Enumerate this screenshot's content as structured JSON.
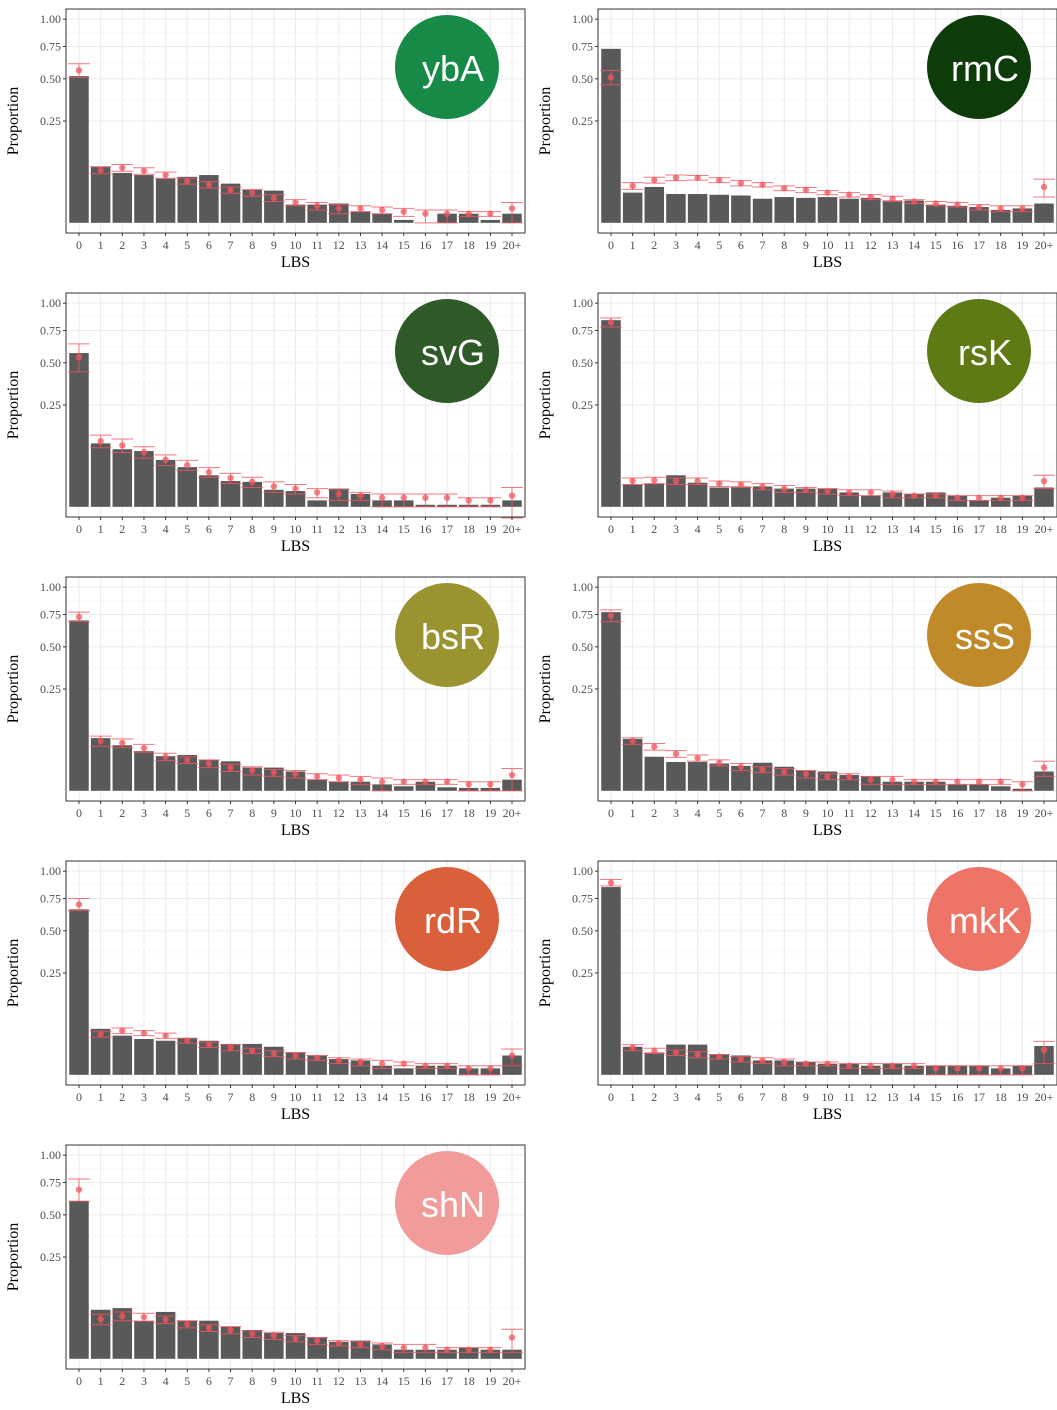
{
  "chart_data": [
    {
      "type": "bar",
      "label": "ybA",
      "badge_color": "#178a47",
      "xlabel": "LBS",
      "ylabel": "Proportion",
      "scale": "sqrt",
      "grid": true,
      "bar_color": "#595959",
      "point_color": "#f2555f",
      "categories": [
        "0",
        "1",
        "2",
        "3",
        "4",
        "5",
        "6",
        "7",
        "8",
        "9",
        "10",
        "11",
        "12",
        "13",
        "14",
        "15",
        "16",
        "17",
        "18",
        "19",
        "20+"
      ],
      "values": [
        0.519,
        0.075,
        0.06,
        0.055,
        0.047,
        0.051,
        0.055,
        0.037,
        0.026,
        0.025,
        0.008,
        0.008,
        0.009,
        0.003,
        0.002,
        0.0002,
        0,
        0.002,
        0.002,
        0.0002,
        0.002
      ],
      "point_values": [
        0.56,
        0.067,
        0.073,
        0.065,
        0.055,
        0.042,
        0.035,
        0.026,
        0.022,
        0.015,
        0.01,
        0.007,
        0.005,
        0.005,
        0.004,
        0.003,
        0.002,
        0.002,
        0.002,
        0.002,
        0.005
      ],
      "point_errors": [
        0.05,
        0.009,
        0.009,
        0.008,
        0.007,
        0.006,
        0.006,
        0.005,
        0.005,
        0.004,
        0.003,
        0.003,
        0.003,
        0.002,
        0.002,
        0.002,
        0.002,
        0.002,
        0.001,
        0.001,
        0.005
      ],
      "ylim": [
        0,
        1
      ],
      "yticks": [
        0.25,
        {
          "value": 0.5,
          "label": "0.50"
        },
        0.75,
        {
          "value": 1,
          "label": "1.00"
        }
      ]
    },
    {
      "type": "bar",
      "label": "rmC",
      "badge_color": "#0d3b0a",
      "xlabel": "LBS",
      "ylabel": "Proportion",
      "scale": "sqrt",
      "grid": true,
      "bar_color": "#595959",
      "point_color": "#f2555f",
      "categories": [
        "0",
        "1",
        "2",
        "3",
        "4",
        "5",
        "6",
        "7",
        "8",
        "9",
        "10",
        "11",
        "12",
        "13",
        "14",
        "15",
        "16",
        "17",
        "18",
        "19",
        "20+"
      ],
      "values": [
        0.73,
        0.022,
        0.031,
        0.02,
        0.02,
        0.019,
        0.018,
        0.014,
        0.016,
        0.015,
        0.016,
        0.014,
        0.015,
        0.012,
        0.012,
        0.008,
        0.007,
        0.006,
        0.004,
        0.005,
        0.009
      ],
      "point_values": [
        0.51,
        0.033,
        0.044,
        0.049,
        0.049,
        0.044,
        0.038,
        0.035,
        0.029,
        0.026,
        0.022,
        0.019,
        0.016,
        0.014,
        0.011,
        0.009,
        0.008,
        0.006,
        0.005,
        0.005,
        0.031
      ],
      "point_errors": [
        0.05,
        0.006,
        0.006,
        0.006,
        0.005,
        0.005,
        0.005,
        0.004,
        0.004,
        0.004,
        0.003,
        0.003,
        0.003,
        0.003,
        0.002,
        0.002,
        0.002,
        0.002,
        0.002,
        0.002,
        0.015
      ],
      "ylim": [
        0,
        1
      ],
      "yticks": [
        0.25,
        {
          "value": 0.5,
          "label": "0.50"
        },
        0.75,
        {
          "value": 1,
          "label": "1.00"
        }
      ]
    },
    {
      "type": "bar",
      "label": "svG",
      "badge_color": "#2d5a27",
      "xlabel": "LBS",
      "ylabel": "Proportion",
      "scale": "sqrt",
      "grid": true,
      "bar_color": "#595959",
      "point_color": "#f2555f",
      "categories": [
        "0",
        "1",
        "2",
        "3",
        "4",
        "5",
        "6",
        "7",
        "8",
        "9",
        "10",
        "11",
        "12",
        "13",
        "14",
        "15",
        "16",
        "17",
        "18",
        "19",
        "20+"
      ],
      "values": [
        0.57,
        0.097,
        0.08,
        0.075,
        0.053,
        0.038,
        0.024,
        0.016,
        0.015,
        0.007,
        0.006,
        0.001,
        0.008,
        0.004,
        0.001,
        0.001,
        0.0001,
        0.0001,
        0.0001,
        0.0001,
        0.001
      ],
      "point_values": [
        0.54,
        0.104,
        0.091,
        0.072,
        0.053,
        0.042,
        0.029,
        0.02,
        0.015,
        0.01,
        0.008,
        0.005,
        0.004,
        0.003,
        0.002,
        0.002,
        0.002,
        0.002,
        0.001,
        0.001,
        0.003
      ],
      "point_errors": [
        0.1,
        0.02,
        0.02,
        0.015,
        0.012,
        0.01,
        0.008,
        0.007,
        0.006,
        0.005,
        0.004,
        0.003,
        0.003,
        0.002,
        0.002,
        0.002,
        0.002,
        0.002,
        0.001,
        0.001,
        0.006
      ],
      "ylim": [
        0,
        1
      ],
      "yticks": [
        0.25,
        {
          "value": 0.5,
          "label": "0.50"
        },
        0.75,
        {
          "value": 1,
          "label": "1.00"
        }
      ]
    },
    {
      "type": "bar",
      "label": "rsK",
      "badge_color": "#5e7a14",
      "xlabel": "LBS",
      "ylabel": "Proportion",
      "scale": "sqrt",
      "grid": true,
      "bar_color": "#595959",
      "point_color": "#f2555f",
      "categories": [
        "0",
        "1",
        "2",
        "3",
        "4",
        "5",
        "6",
        "7",
        "8",
        "9",
        "10",
        "11",
        "12",
        "13",
        "14",
        "15",
        "16",
        "17",
        "18",
        "19",
        "20+"
      ],
      "values": [
        0.84,
        0.012,
        0.013,
        0.024,
        0.014,
        0.009,
        0.01,
        0.01,
        0.008,
        0.008,
        0.008,
        0.005,
        0.003,
        0.005,
        0.004,
        0.005,
        0.003,
        0.001,
        0.002,
        0.003,
        0.009
      ],
      "point_values": [
        0.82,
        0.016,
        0.017,
        0.016,
        0.016,
        0.013,
        0.012,
        0.01,
        0.008,
        0.007,
        0.006,
        0.005,
        0.005,
        0.004,
        0.003,
        0.003,
        0.002,
        0.002,
        0.002,
        0.002,
        0.016
      ],
      "point_errors": [
        0.04,
        0.004,
        0.004,
        0.004,
        0.004,
        0.003,
        0.003,
        0.003,
        0.003,
        0.002,
        0.002,
        0.002,
        0.002,
        0.002,
        0.001,
        0.001,
        0.001,
        0.001,
        0.001,
        0.001,
        0.008
      ],
      "ylim": [
        0,
        1
      ],
      "yticks": [
        0.25,
        {
          "value": 0.5,
          "label": "0.50"
        },
        0.75,
        {
          "value": 1,
          "label": "1.00"
        }
      ]
    },
    {
      "type": "bar",
      "label": "bsR",
      "badge_color": "#9a9430",
      "xlabel": "LBS",
      "ylabel": "Proportion",
      "scale": "sqrt",
      "grid": true,
      "bar_color": "#595959",
      "point_color": "#f2555f",
      "categories": [
        "0",
        "1",
        "2",
        "3",
        "4",
        "5",
        "6",
        "7",
        "8",
        "9",
        "10",
        "11",
        "12",
        "13",
        "14",
        "15",
        "16",
        "17",
        "18",
        "19",
        "20+"
      ],
      "values": [
        0.7,
        0.067,
        0.05,
        0.038,
        0.029,
        0.031,
        0.023,
        0.021,
        0.013,
        0.013,
        0.009,
        0.003,
        0.002,
        0.002,
        0.001,
        0.0005,
        0.002,
        0.0003,
        0.0002,
        0.0002,
        0.003
      ],
      "point_values": [
        0.73,
        0.06,
        0.055,
        0.044,
        0.028,
        0.023,
        0.018,
        0.013,
        0.01,
        0.008,
        0.007,
        0.005,
        0.004,
        0.003,
        0.002,
        0.002,
        0.002,
        0.002,
        0.001,
        0.001,
        0.006
      ],
      "point_errors": [
        0.04,
        0.012,
        0.01,
        0.008,
        0.006,
        0.005,
        0.005,
        0.004,
        0.004,
        0.003,
        0.003,
        0.002,
        0.002,
        0.002,
        0.002,
        0.001,
        0.001,
        0.001,
        0.001,
        0.001,
        0.006
      ],
      "ylim": [
        0,
        1
      ],
      "yticks": [
        0.25,
        {
          "value": 0.5,
          "label": "0.50"
        },
        0.75,
        {
          "value": 1,
          "label": "1.00"
        }
      ]
    },
    {
      "type": "bar",
      "label": "ssS",
      "badge_color": "#c08a2a",
      "xlabel": "LBS",
      "ylabel": "Proportion",
      "scale": "sqrt",
      "grid": true,
      "bar_color": "#595959",
      "point_color": "#f2555f",
      "categories": [
        "0",
        "1",
        "2",
        "3",
        "4",
        "5",
        "6",
        "7",
        "8",
        "9",
        "10",
        "11",
        "12",
        "13",
        "14",
        "15",
        "16",
        "17",
        "18",
        "19",
        "20+"
      ],
      "values": [
        0.77,
        0.065,
        0.028,
        0.02,
        0.02,
        0.018,
        0.015,
        0.019,
        0.014,
        0.01,
        0.009,
        0.006,
        0.005,
        0.002,
        0.002,
        0.002,
        0.001,
        0.001,
        0.0005,
        0.0001,
        0.009
      ],
      "point_values": [
        0.74,
        0.06,
        0.047,
        0.033,
        0.026,
        0.019,
        0.014,
        0.011,
        0.009,
        0.007,
        0.005,
        0.005,
        0.003,
        0.003,
        0.002,
        0.002,
        0.002,
        0.002,
        0.002,
        0.001,
        0.013
      ],
      "point_errors": [
        0.05,
        0.008,
        0.007,
        0.006,
        0.005,
        0.004,
        0.004,
        0.003,
        0.003,
        0.003,
        0.002,
        0.002,
        0.002,
        0.002,
        0.001,
        0.001,
        0.001,
        0.001,
        0.001,
        0.001,
        0.008
      ],
      "ylim": [
        0,
        1
      ],
      "yticks": [
        0.25,
        {
          "value": 0.5,
          "label": "0.50"
        },
        0.75,
        {
          "value": 1,
          "label": "1.00"
        }
      ]
    },
    {
      "type": "bar",
      "label": "rdR",
      "badge_color": "#d9603a",
      "xlabel": "LBS",
      "ylabel": "Proportion",
      "scale": "sqrt",
      "grid": true,
      "bar_color": "#595959",
      "point_color": "#f2555f",
      "categories": [
        "0",
        "1",
        "2",
        "3",
        "4",
        "5",
        "6",
        "7",
        "8",
        "9",
        "10",
        "11",
        "12",
        "13",
        "14",
        "15",
        "16",
        "17",
        "18",
        "19",
        "20+"
      ],
      "values": [
        0.66,
        0.051,
        0.037,
        0.031,
        0.028,
        0.033,
        0.028,
        0.023,
        0.023,
        0.019,
        0.012,
        0.009,
        0.006,
        0.005,
        0.002,
        0.001,
        0.002,
        0.002,
        0.001,
        0.001,
        0.009
      ],
      "point_values": [
        0.7,
        0.04,
        0.047,
        0.042,
        0.037,
        0.028,
        0.022,
        0.018,
        0.014,
        0.011,
        0.009,
        0.007,
        0.005,
        0.004,
        0.003,
        0.003,
        0.002,
        0.002,
        0.001,
        0.001,
        0.009
      ],
      "point_errors": [
        0.05,
        0.006,
        0.006,
        0.005,
        0.005,
        0.004,
        0.004,
        0.004,
        0.003,
        0.003,
        0.003,
        0.002,
        0.002,
        0.002,
        0.002,
        0.001,
        0.001,
        0.001,
        0.001,
        0.001,
        0.007
      ],
      "ylim": [
        0,
        1
      ],
      "yticks": [
        0.25,
        {
          "value": 0.5,
          "label": "0.50"
        },
        0.75,
        {
          "value": 1,
          "label": "1.00"
        }
      ]
    },
    {
      "type": "bar",
      "label": "mkK",
      "badge_color": "#ee7468",
      "xlabel": "LBS",
      "ylabel": "Proportion",
      "scale": "sqrt",
      "grid": true,
      "bar_color": "#595959",
      "point_color": "#f2555f",
      "categories": [
        "0",
        "1",
        "2",
        "3",
        "4",
        "5",
        "6",
        "7",
        "8",
        "9",
        "10",
        "11",
        "12",
        "13",
        "14",
        "15",
        "16",
        "17",
        "18",
        "19",
        "20+"
      ],
      "values": [
        0.85,
        0.019,
        0.012,
        0.022,
        0.022,
        0.01,
        0.009,
        0.005,
        0.005,
        0.004,
        0.003,
        0.003,
        0.002,
        0.003,
        0.002,
        0.002,
        0.002,
        0.002,
        0.001,
        0.002,
        0.02
      ],
      "point_values": [
        0.89,
        0.018,
        0.014,
        0.012,
        0.01,
        0.008,
        0.006,
        0.005,
        0.004,
        0.003,
        0.003,
        0.002,
        0.002,
        0.002,
        0.002,
        0.001,
        0.001,
        0.001,
        0.001,
        0.001,
        0.015
      ],
      "point_errors": [
        0.03,
        0.004,
        0.003,
        0.003,
        0.003,
        0.002,
        0.002,
        0.002,
        0.002,
        0.001,
        0.001,
        0.001,
        0.001,
        0.001,
        0.001,
        0.001,
        0.001,
        0.001,
        0.001,
        0.001,
        0.012
      ],
      "ylim": [
        0,
        1
      ],
      "yticks": [
        0.25,
        {
          "value": 0.5,
          "label": "0.50"
        },
        0.75,
        {
          "value": 1,
          "label": "1.00"
        }
      ]
    },
    {
      "type": "bar",
      "label": "shN",
      "badge_color": "#f29b9b",
      "xlabel": "LBS",
      "ylabel": "Proportion",
      "scale": "sqrt",
      "grid": true,
      "bar_color": "#595959",
      "point_color": "#f2555f",
      "categories": [
        "0",
        "1",
        "2",
        "3",
        "4",
        "5",
        "6",
        "7",
        "8",
        "9",
        "10",
        "11",
        "12",
        "13",
        "14",
        "15",
        "16",
        "17",
        "18",
        "19",
        "20+"
      ],
      "values": [
        0.6,
        0.058,
        0.062,
        0.035,
        0.053,
        0.035,
        0.035,
        0.025,
        0.02,
        0.016,
        0.016,
        0.011,
        0.007,
        0.008,
        0.005,
        0.002,
        0.002,
        0.002,
        0.003,
        0.002,
        0.002
      ],
      "point_values": [
        0.69,
        0.038,
        0.044,
        0.042,
        0.037,
        0.029,
        0.023,
        0.02,
        0.015,
        0.013,
        0.01,
        0.008,
        0.006,
        0.005,
        0.004,
        0.003,
        0.003,
        0.002,
        0.002,
        0.002,
        0.011
      ],
      "point_errors": [
        0.09,
        0.01,
        0.009,
        0.008,
        0.007,
        0.006,
        0.005,
        0.005,
        0.004,
        0.004,
        0.003,
        0.003,
        0.002,
        0.002,
        0.002,
        0.002,
        0.002,
        0.001,
        0.001,
        0.001,
        0.01
      ],
      "ylim": [
        0,
        1
      ],
      "yticks": [
        0.25,
        {
          "value": 0.5,
          "label": "0.50"
        },
        0.75,
        {
          "value": 1,
          "label": "1.00"
        }
      ]
    }
  ]
}
